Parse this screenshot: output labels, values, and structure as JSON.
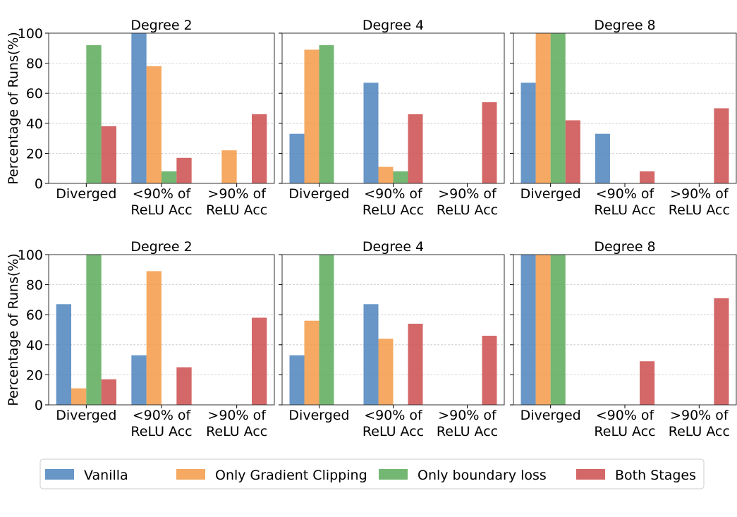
{
  "colors": {
    "Vanilla": "#4c84bd",
    "Only Gradient Clipping": "#f39a46",
    "Only boundary loss": "#5caa5a",
    "Both Stages": "#cd4c4c",
    "grid": "#c8c8c8",
    "axis": "#000000"
  },
  "legend": {
    "placement": "bottom-center",
    "entries": [
      "Vanilla",
      "Only Gradient Clipping",
      "Only boundary loss",
      "Both Stages"
    ]
  },
  "chart_data": [
    {
      "type": "bar",
      "title": "Degree 2",
      "ylabel": "Percentage of Runs(%)",
      "ylim": [
        0,
        100
      ],
      "yticks": [
        0,
        20,
        40,
        60,
        80,
        100
      ],
      "grid": true,
      "categories": [
        [
          "Diverged"
        ],
        [
          "<90% of",
          "ReLU Acc"
        ],
        [
          ">90% of",
          "ReLU Acc"
        ]
      ],
      "series": [
        {
          "name": "Vanilla",
          "values": [
            0,
            100,
            0
          ]
        },
        {
          "name": "Only Gradient Clipping",
          "values": [
            0,
            78,
            22
          ]
        },
        {
          "name": "Only boundary loss",
          "values": [
            92,
            8,
            0
          ]
        },
        {
          "name": "Both Stages",
          "values": [
            38,
            17,
            46
          ]
        }
      ]
    },
    {
      "type": "bar",
      "title": "Degree 4",
      "ylim": [
        0,
        100
      ],
      "yticks": [
        0,
        20,
        40,
        60,
        80,
        100
      ],
      "grid": true,
      "categories": [
        [
          "Diverged"
        ],
        [
          "<90% of",
          "ReLU Acc"
        ],
        [
          ">90% of",
          "ReLU Acc"
        ]
      ],
      "series": [
        {
          "name": "Vanilla",
          "values": [
            33,
            67,
            0
          ]
        },
        {
          "name": "Only Gradient Clipping",
          "values": [
            89,
            11,
            0
          ]
        },
        {
          "name": "Only boundary loss",
          "values": [
            92,
            8,
            0
          ]
        },
        {
          "name": "Both Stages",
          "values": [
            0,
            46,
            54
          ]
        }
      ]
    },
    {
      "type": "bar",
      "title": "Degree 8",
      "ylim": [
        0,
        100
      ],
      "yticks": [
        0,
        20,
        40,
        60,
        80,
        100
      ],
      "grid": true,
      "categories": [
        [
          "Diverged"
        ],
        [
          "<90% of",
          "ReLU Acc"
        ],
        [
          ">90% of",
          "ReLU Acc"
        ]
      ],
      "series": [
        {
          "name": "Vanilla",
          "values": [
            67,
            33,
            0
          ]
        },
        {
          "name": "Only Gradient Clipping",
          "values": [
            100,
            0,
            0
          ]
        },
        {
          "name": "Only boundary loss",
          "values": [
            100,
            0,
            0
          ]
        },
        {
          "name": "Both Stages",
          "values": [
            42,
            8,
            50
          ]
        }
      ]
    },
    {
      "type": "bar",
      "title": "Degree 2",
      "ylabel": "Percentage of Runs(%)",
      "ylim": [
        0,
        100
      ],
      "yticks": [
        0,
        20,
        40,
        60,
        80,
        100
      ],
      "grid": true,
      "categories": [
        [
          "Diverged"
        ],
        [
          "<90% of",
          "ReLU Acc"
        ],
        [
          ">90% of",
          "ReLU Acc"
        ]
      ],
      "series": [
        {
          "name": "Vanilla",
          "values": [
            67,
            33,
            0
          ]
        },
        {
          "name": "Only Gradient Clipping",
          "values": [
            11,
            89,
            0
          ]
        },
        {
          "name": "Only boundary loss",
          "values": [
            100,
            0,
            0
          ]
        },
        {
          "name": "Both Stages",
          "values": [
            17,
            25,
            58
          ]
        }
      ]
    },
    {
      "type": "bar",
      "title": "Degree 4",
      "ylim": [
        0,
        100
      ],
      "yticks": [
        0,
        20,
        40,
        60,
        80,
        100
      ],
      "grid": true,
      "categories": [
        [
          "Diverged"
        ],
        [
          "<90% of",
          "ReLU Acc"
        ],
        [
          ">90% of",
          "ReLU Acc"
        ]
      ],
      "series": [
        {
          "name": "Vanilla",
          "values": [
            33,
            67,
            0
          ]
        },
        {
          "name": "Only Gradient Clipping",
          "values": [
            56,
            44,
            0
          ]
        },
        {
          "name": "Only boundary loss",
          "values": [
            100,
            0,
            0
          ]
        },
        {
          "name": "Both Stages",
          "values": [
            0,
            54,
            46
          ]
        }
      ]
    },
    {
      "type": "bar",
      "title": "Degree 8",
      "ylim": [
        0,
        100
      ],
      "yticks": [
        0,
        20,
        40,
        60,
        80,
        100
      ],
      "grid": true,
      "categories": [
        [
          "Diverged"
        ],
        [
          "<90% of",
          "ReLU Acc"
        ],
        [
          ">90% of",
          "ReLU Acc"
        ]
      ],
      "series": [
        {
          "name": "Vanilla",
          "values": [
            100,
            0,
            0
          ]
        },
        {
          "name": "Only Gradient Clipping",
          "values": [
            100,
            0,
            0
          ]
        },
        {
          "name": "Only boundary loss",
          "values": [
            100,
            0,
            0
          ]
        },
        {
          "name": "Both Stages",
          "values": [
            0,
            29,
            71
          ]
        }
      ]
    }
  ]
}
